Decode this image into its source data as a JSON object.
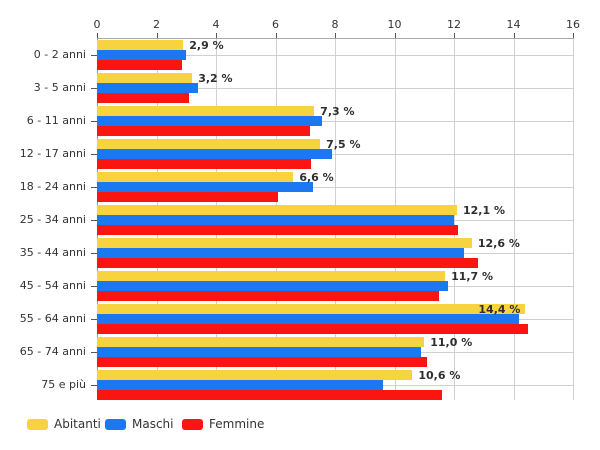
{
  "chart_data": {
    "type": "bar",
    "orientation": "horizontal",
    "title": "",
    "categories": [
      "0 - 2 anni",
      "3 - 5 anni",
      "6 - 11 anni",
      "12 - 17 anni",
      "18 - 24 anni",
      "25 - 34 anni",
      "35 - 44 anni",
      "45 - 54 anni",
      "55 - 64 anni",
      "65 - 74 anni",
      "75 e più"
    ],
    "series": [
      {
        "name": "Abitanti",
        "color": "#F8D340",
        "values": [
          2.9,
          3.2,
          7.3,
          7.5,
          6.6,
          12.1,
          12.6,
          11.7,
          14.4,
          11.0,
          10.6
        ]
      },
      {
        "name": "Maschi",
        "color": "#1B78F0",
        "values": [
          3.0,
          3.4,
          7.55,
          7.9,
          7.25,
          12.0,
          12.35,
          11.8,
          14.2,
          10.9,
          9.6
        ]
      },
      {
        "name": "Femmine",
        "color": "#FB1510",
        "values": [
          2.85,
          3.1,
          7.15,
          7.2,
          6.1,
          12.15,
          12.8,
          11.5,
          14.5,
          11.1,
          11.6
        ]
      }
    ],
    "value_labels": [
      "2,9 %",
      "3,2 %",
      "7,3 %",
      "7,5 %",
      "6,6 %",
      "12,1 %",
      "12,6 %",
      "11,7 %",
      "14,4 %",
      "11,0 %",
      "10,6 %"
    ],
    "value_labels_series": "Abitanti",
    "x_ticks": [
      0,
      2,
      4,
      6,
      8,
      10,
      12,
      14,
      16
    ],
    "xlim": [
      0,
      16
    ],
    "grid": true,
    "gridline_color": "#d0d0d0",
    "background_color": "#ffffff",
    "legend_position": "bottom-left"
  }
}
